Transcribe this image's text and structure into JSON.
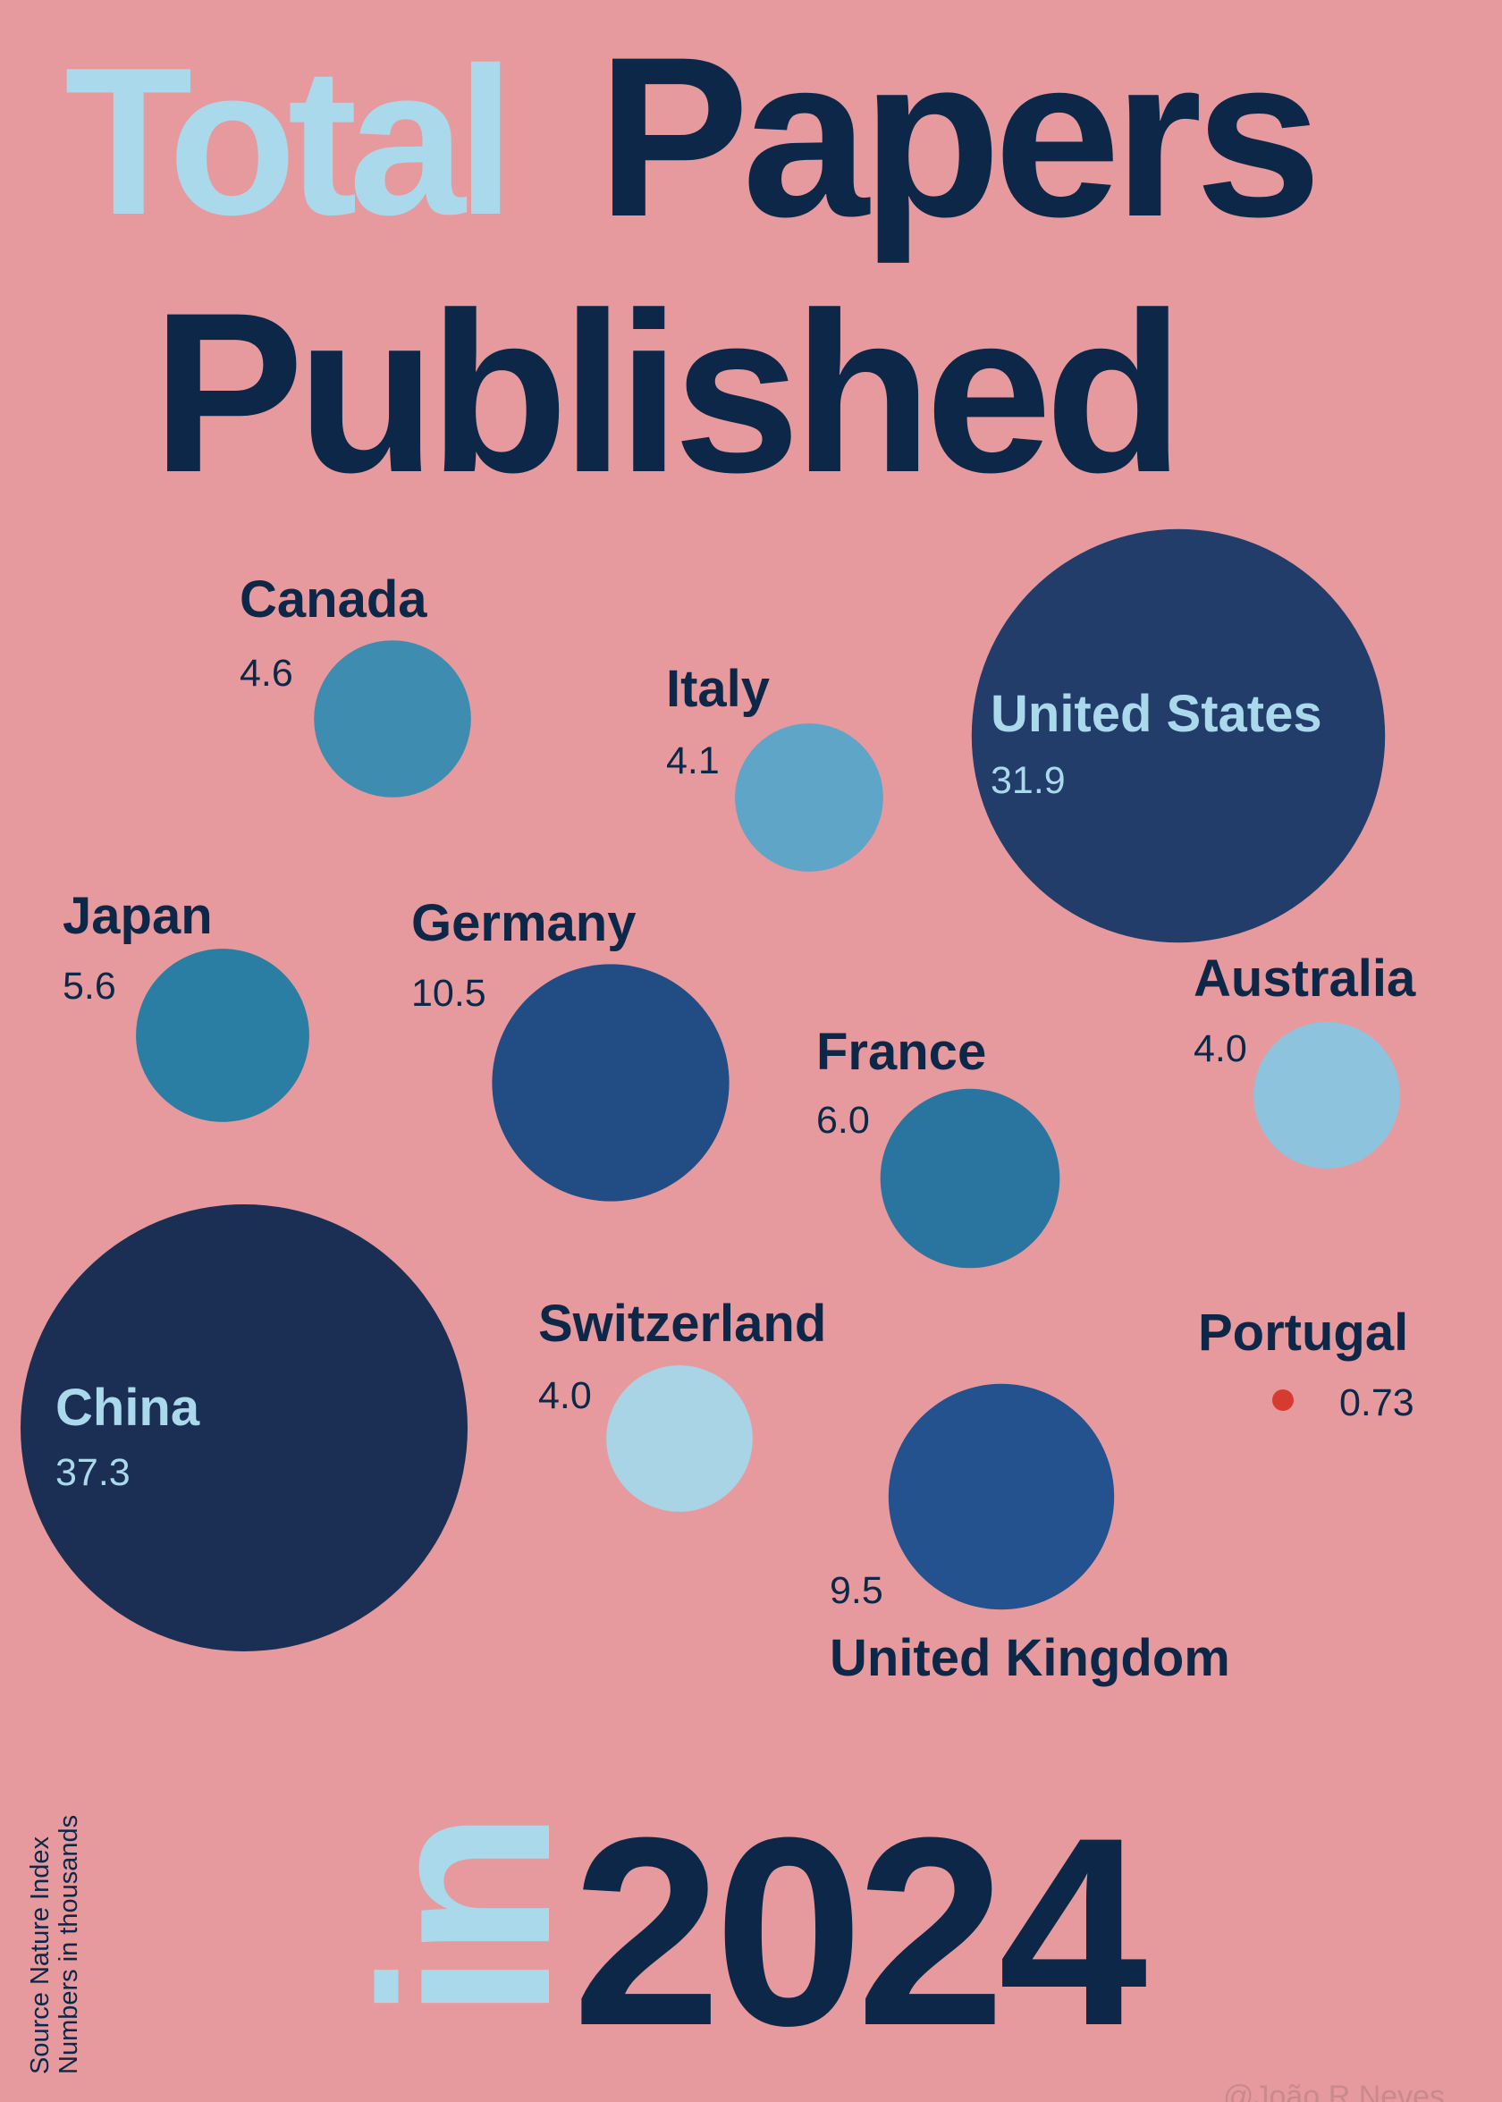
{
  "title": {
    "word1": "Total",
    "word2": "Papers",
    "word3": "Published",
    "word4": "in",
    "word5": "2024"
  },
  "source": "Source Nature Index",
  "units": "Numbers in thousands",
  "credit": "@João R Neves",
  "colors": {
    "background": "#e69a9d",
    "title_dark": "#0c2748",
    "title_light": "#a9d9ea",
    "highlight": "#d63b30"
  },
  "chart_data": {
    "type": "bubble",
    "unit": "thousands",
    "points": [
      {
        "country": "China",
        "value": "37.3",
        "color": "#1b2f55"
      },
      {
        "country": "United States",
        "value": "31.9",
        "color": "#233d6a"
      },
      {
        "country": "Germany",
        "value": "10.5",
        "color": "#224d84"
      },
      {
        "country": "United Kingdom",
        "value": "9.5",
        "color": "#24528e"
      },
      {
        "country": "France",
        "value": "6.0",
        "color": "#2a759f"
      },
      {
        "country": "Japan",
        "value": "5.6",
        "color": "#2a7ea4"
      },
      {
        "country": "Canada",
        "value": "4.6",
        "color": "#3e8cb0"
      },
      {
        "country": "Italy",
        "value": "4.1",
        "color": "#5fa5c8"
      },
      {
        "country": "Switzerland",
        "value": "4.0",
        "color": "#a8d4e6"
      },
      {
        "country": "Australia",
        "value": "4.0",
        "color": "#8dc3dd"
      },
      {
        "country": "Portugal",
        "value": "0.73",
        "color": "#d63b30"
      }
    ]
  }
}
